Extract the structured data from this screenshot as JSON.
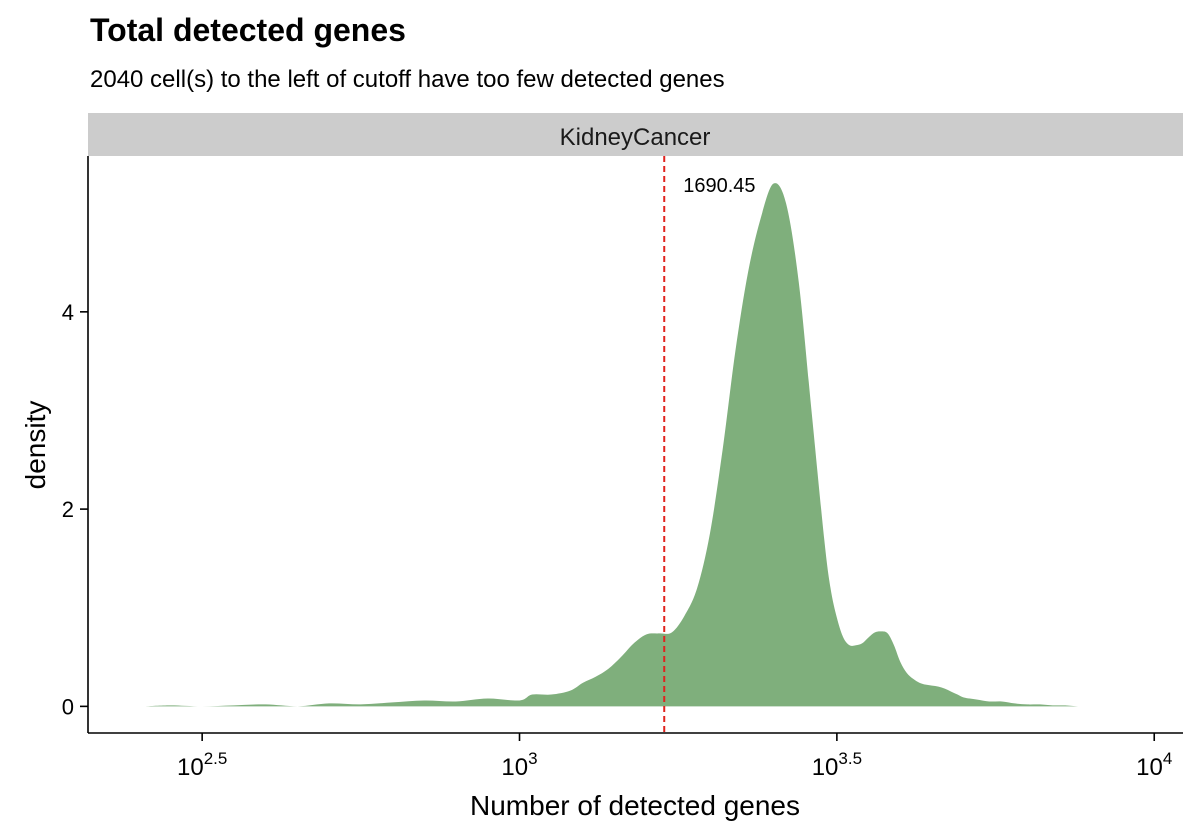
{
  "chart_data": {
    "type": "area",
    "title": "Total detected genes",
    "subtitle": "2040 cell(s) to the left of cutoff have too few detected genes",
    "facet_label": "KidneyCancer",
    "xlabel": "Number of detected genes",
    "ylabel": "density",
    "x_scale": "log10",
    "xlim": [
      209,
      11100
    ],
    "ylim": [
      -0.27,
      5.58
    ],
    "x_ticks": [
      {
        "value": 316.23,
        "base": "10",
        "exp": "2.5"
      },
      {
        "value": 1000,
        "base": "10",
        "exp": "3"
      },
      {
        "value": 3162.28,
        "base": "10",
        "exp": "3.5"
      },
      {
        "value": 10000,
        "base": "10",
        "exp": "4"
      }
    ],
    "y_ticks": [
      0,
      2,
      4
    ],
    "fill_color": "#7faf7c",
    "cutoff": {
      "value": 1690.45,
      "label": "1690.45",
      "color": "#e0231e"
    },
    "x": [
      257,
      282,
      316,
      355,
      398,
      447,
      501,
      562,
      631,
      708,
      794,
      891,
      1000,
      1047,
      1122,
      1202,
      1259,
      1318,
      1380,
      1445,
      1514,
      1585,
      1660,
      1738,
      1820,
      1905,
      1995,
      2089,
      2188,
      2291,
      2399,
      2512,
      2630,
      2754,
      2884,
      3020,
      3090,
      3162,
      3236,
      3311,
      3388,
      3467,
      3548,
      3631,
      3715,
      3802,
      3890,
      3981,
      4074,
      4169,
      4266,
      4365,
      4467,
      4571,
      4677,
      4786,
      4898,
      5012,
      5248,
      5495,
      5754,
      6026,
      6310,
      6607,
      6918,
      7244,
      7586,
      7943,
      8318,
      8710,
      9120
    ],
    "y": [
      0.0,
      0.01,
      0.0,
      0.01,
      0.02,
      0.0,
      0.03,
      0.02,
      0.04,
      0.06,
      0.05,
      0.08,
      0.06,
      0.12,
      0.12,
      0.16,
      0.24,
      0.3,
      0.38,
      0.5,
      0.64,
      0.73,
      0.74,
      0.75,
      0.92,
      1.2,
      1.75,
      2.6,
      3.6,
      4.4,
      4.95,
      5.3,
      5.1,
      4.3,
      3.0,
      1.7,
      1.2,
      0.9,
      0.7,
      0.62,
      0.62,
      0.64,
      0.7,
      0.75,
      0.76,
      0.74,
      0.62,
      0.45,
      0.34,
      0.28,
      0.24,
      0.22,
      0.21,
      0.2,
      0.18,
      0.15,
      0.12,
      0.09,
      0.07,
      0.05,
      0.05,
      0.03,
      0.02,
      0.02,
      0.01,
      0.01,
      0.0,
      0.0,
      0.0,
      0.0,
      0.0
    ]
  }
}
